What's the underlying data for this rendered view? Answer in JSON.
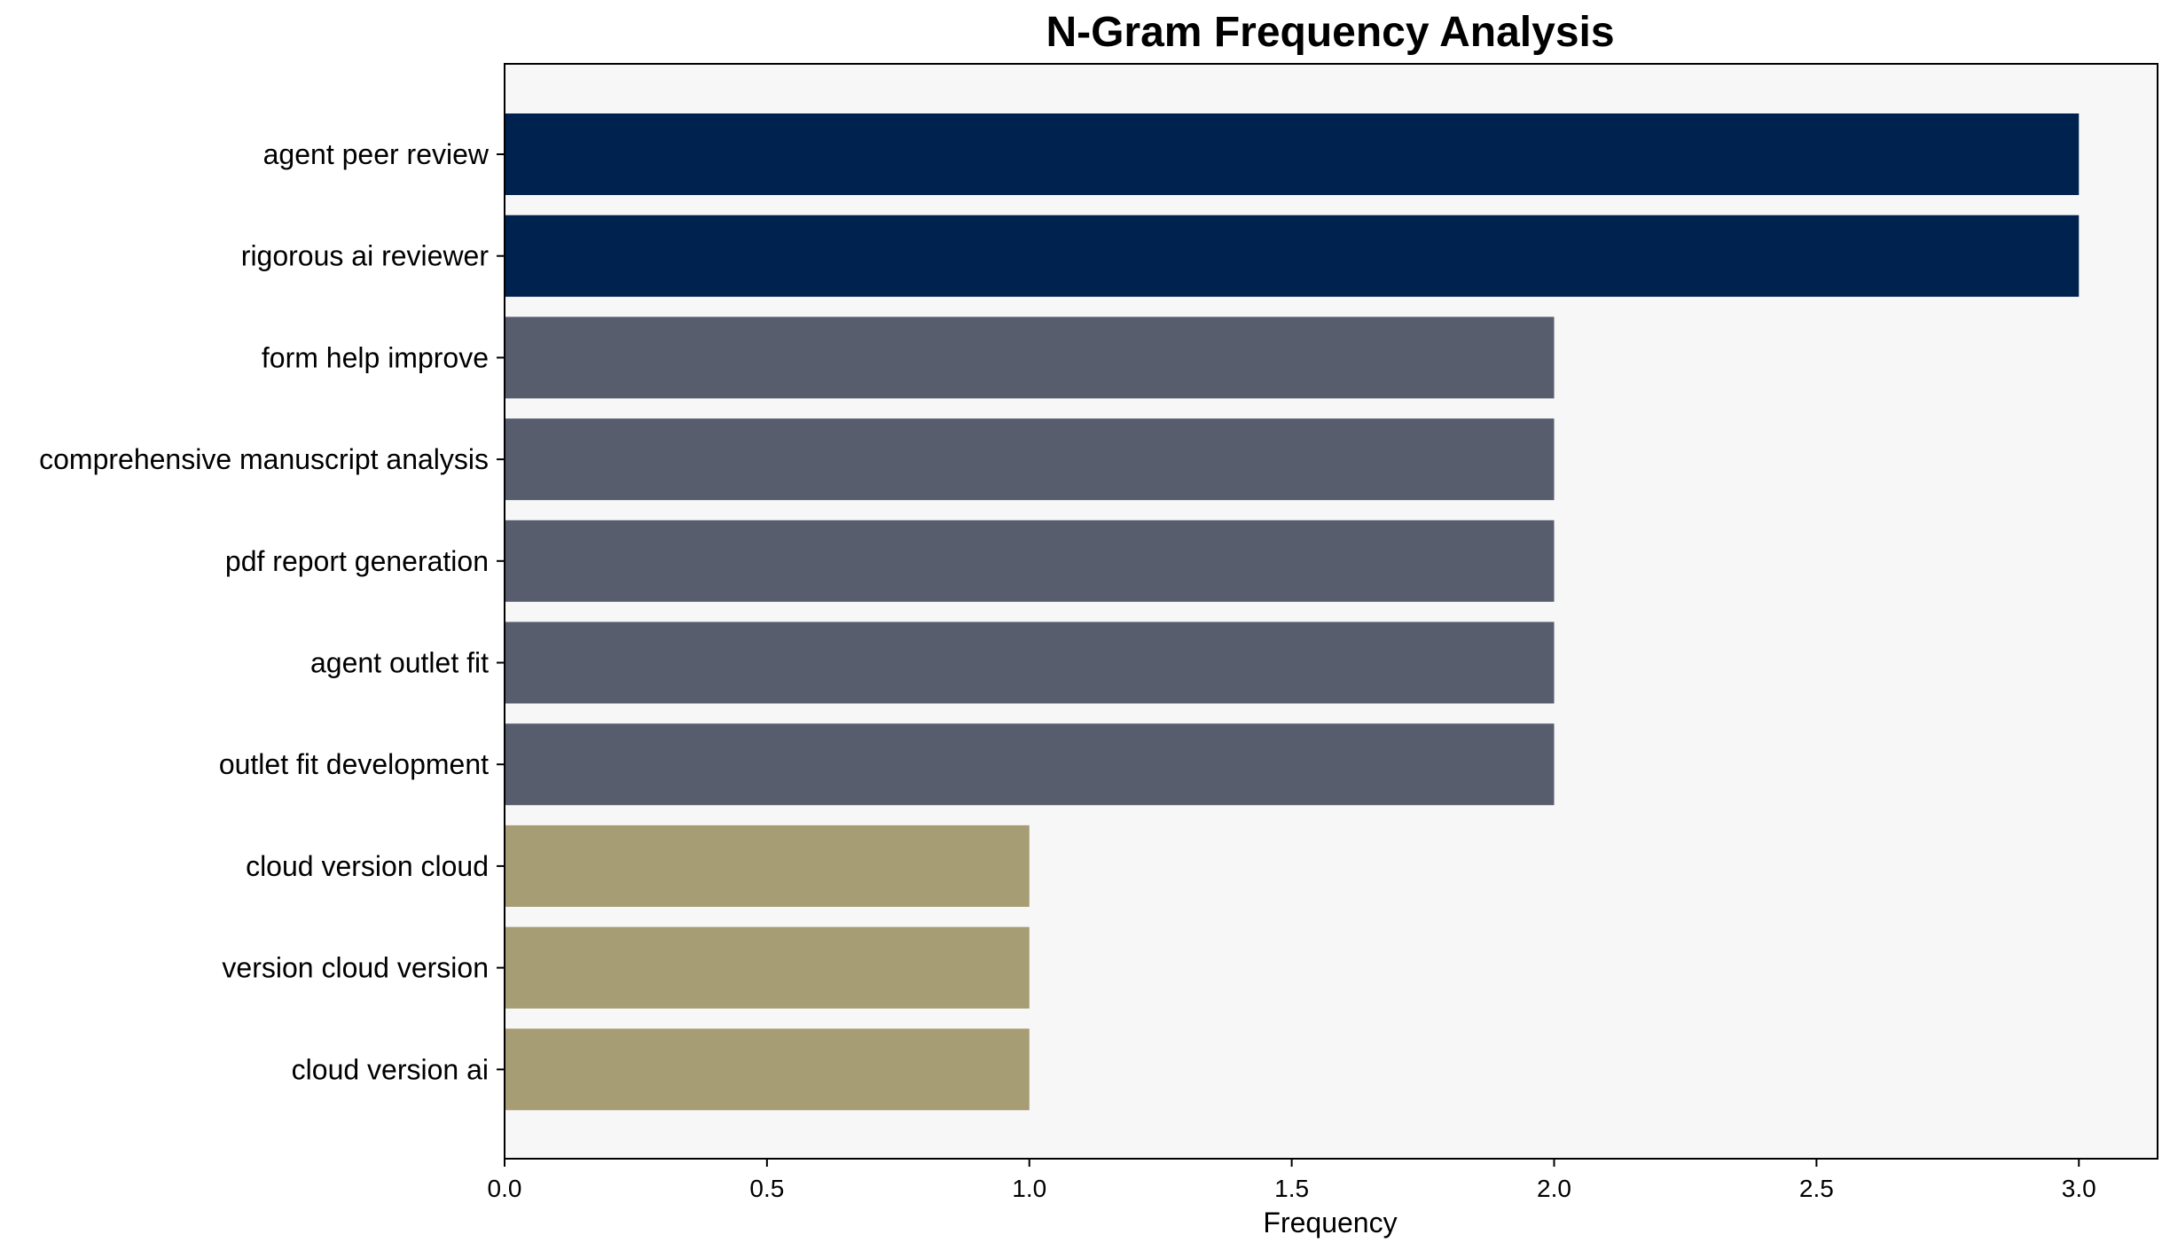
{
  "chart_data": {
    "type": "bar",
    "orientation": "horizontal",
    "title": "N-Gram Frequency Analysis",
    "xlabel": "Frequency",
    "ylabel": "",
    "xlim": [
      0,
      3.15
    ],
    "x_ticks": [
      0.0,
      0.5,
      1.0,
      1.5,
      2.0,
      2.5,
      3.0
    ],
    "x_tick_labels": [
      "0.0",
      "0.5",
      "1.0",
      "1.5",
      "2.0",
      "2.5",
      "3.0"
    ],
    "grid": false,
    "categories": [
      "agent peer review",
      "rigorous ai reviewer",
      "form help improve",
      "comprehensive manuscript analysis",
      "pdf report generation",
      "agent outlet fit",
      "outlet fit development",
      "cloud version cloud",
      "version cloud version",
      "cloud version ai"
    ],
    "values": [
      3,
      3,
      2,
      2,
      2,
      2,
      2,
      1,
      1,
      1
    ],
    "bar_colors": [
      "#00224e",
      "#00224e",
      "#575d6d",
      "#575d6d",
      "#575d6d",
      "#575d6d",
      "#575d6d",
      "#a69d75",
      "#a69d75",
      "#a69d75"
    ],
    "plot_background": "#f7f7f7"
  }
}
